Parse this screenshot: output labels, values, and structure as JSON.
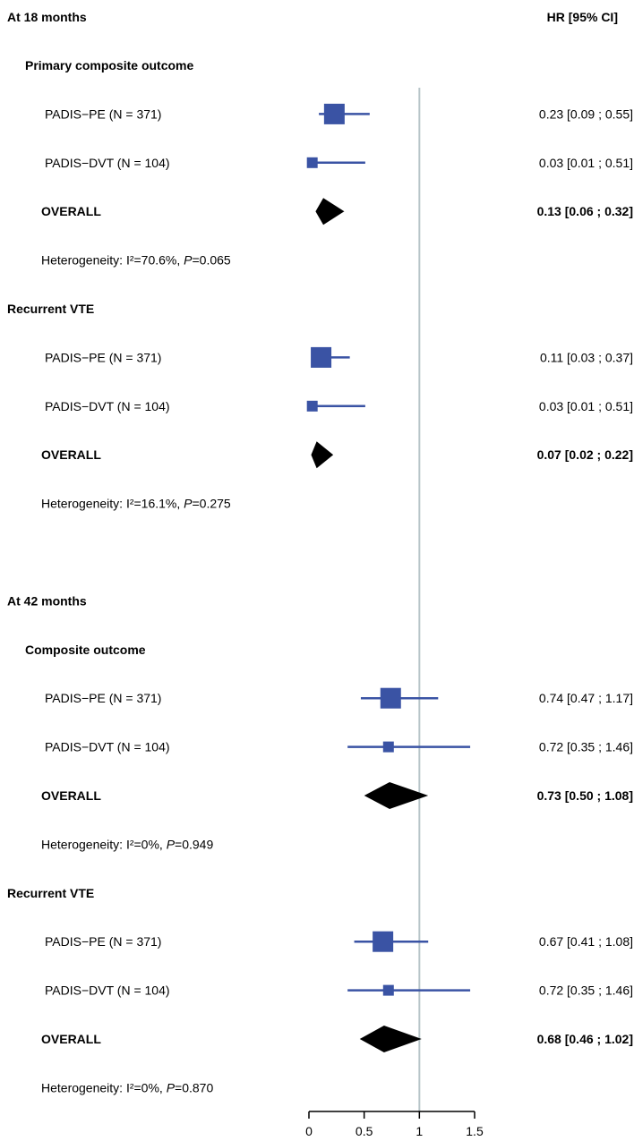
{
  "header": {
    "col_left": "At 18 months",
    "col_right": "HR [95% CI]"
  },
  "colors": {
    "study": "#3a53a4",
    "overall": "#000000",
    "refline": "#b7c4c8",
    "axis": "#000000"
  },
  "chart_data": {
    "type": "forest",
    "xlim": [
      0,
      1.5
    ],
    "ticks": [
      0,
      0.5,
      1,
      1.5
    ],
    "tick_labels": [
      "0",
      "0.5",
      "1",
      "1.5"
    ],
    "reference_line": 1,
    "rows": [
      {
        "kind": "section",
        "text": "Primary composite outcome",
        "indent": true
      },
      {
        "kind": "study",
        "text": "PADIS−PE (N = 371)",
        "hr": 0.23,
        "lo": 0.09,
        "hi": 0.55,
        "weight": "large",
        "ci": "0.23 [0.09 ; 0.55]"
      },
      {
        "kind": "study",
        "text": "PADIS−DVT (N = 104)",
        "hr": 0.03,
        "lo": 0.01,
        "hi": 0.51,
        "weight": "small",
        "ci": "0.03 [0.01 ; 0.51]"
      },
      {
        "kind": "overall",
        "text": "OVERALL",
        "hr": 0.13,
        "lo": 0.06,
        "hi": 0.32,
        "ci": "0.13 [0.06 ; 0.32]"
      },
      {
        "kind": "het",
        "prefix": "Heterogeneity: I²=70.6%, ",
        "p": "P",
        "suffix": "=0.065"
      },
      {
        "kind": "section",
        "text": "Recurrent VTE",
        "indent": false
      },
      {
        "kind": "study",
        "text": "PADIS−PE (N = 371)",
        "hr": 0.11,
        "lo": 0.03,
        "hi": 0.37,
        "weight": "large",
        "ci": "0.11 [0.03 ; 0.37]"
      },
      {
        "kind": "study",
        "text": "PADIS−DVT (N = 104)",
        "hr": 0.03,
        "lo": 0.01,
        "hi": 0.51,
        "weight": "small",
        "ci": "0.03 [0.01 ; 0.51]"
      },
      {
        "kind": "overall",
        "text": "OVERALL",
        "hr": 0.07,
        "lo": 0.02,
        "hi": 0.22,
        "ci": "0.07 [0.02 ; 0.22]"
      },
      {
        "kind": "het",
        "prefix": "Heterogeneity: I²=16.1%, ",
        "p": "P",
        "suffix": "=0.275"
      },
      {
        "kind": "blank"
      },
      {
        "kind": "group",
        "text": "At 42 months"
      },
      {
        "kind": "section",
        "text": "Composite outcome",
        "indent": true
      },
      {
        "kind": "study",
        "text": "PADIS−PE (N = 371)",
        "hr": 0.74,
        "lo": 0.47,
        "hi": 1.17,
        "weight": "large",
        "ci": "0.74 [0.47 ; 1.17]"
      },
      {
        "kind": "study",
        "text": "PADIS−DVT (N = 104)",
        "hr": 0.72,
        "lo": 0.35,
        "hi": 1.46,
        "weight": "small",
        "ci": "0.72 [0.35 ; 1.46]"
      },
      {
        "kind": "overall",
        "text": "OVERALL",
        "hr": 0.73,
        "lo": 0.5,
        "hi": 1.08,
        "ci": "0.73 [0.50 ; 1.08]"
      },
      {
        "kind": "het",
        "prefix": "Heterogeneity: I²=0%, ",
        "p": "P",
        "suffix": "=0.949"
      },
      {
        "kind": "section",
        "text": "Recurrent VTE",
        "indent": false
      },
      {
        "kind": "study",
        "text": "PADIS−PE (N = 371)",
        "hr": 0.67,
        "lo": 0.41,
        "hi": 1.08,
        "weight": "large",
        "ci": "0.67 [0.41 ; 1.08]"
      },
      {
        "kind": "study",
        "text": "PADIS−DVT (N = 104)",
        "hr": 0.72,
        "lo": 0.35,
        "hi": 1.46,
        "weight": "small",
        "ci": "0.72 [0.35 ; 1.46]"
      },
      {
        "kind": "overall",
        "text": "OVERALL",
        "hr": 0.68,
        "lo": 0.46,
        "hi": 1.02,
        "ci": "0.68 [0.46 ; 1.02]"
      },
      {
        "kind": "het",
        "prefix": "Heterogeneity: I²=0%, ",
        "p": "P",
        "suffix": "=0.870"
      }
    ]
  }
}
